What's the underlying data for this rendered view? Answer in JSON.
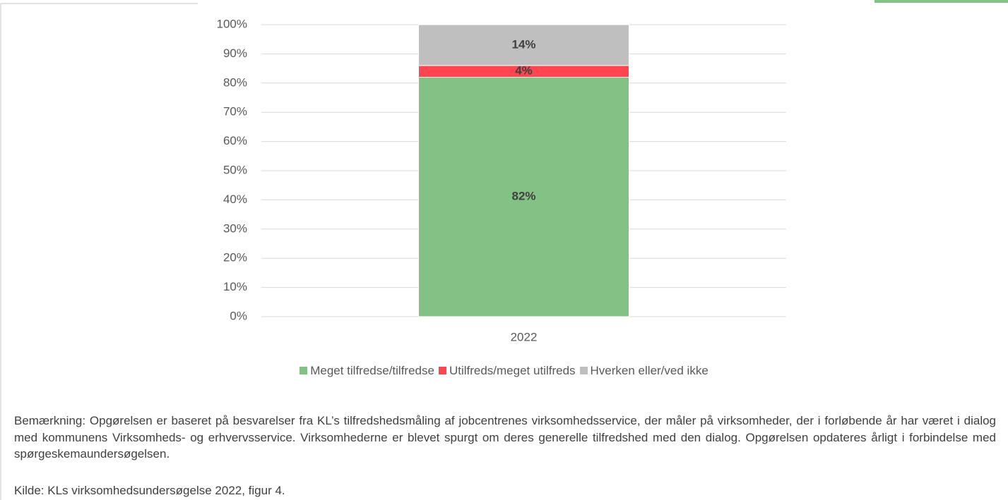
{
  "chart_data": {
    "type": "stacked_bar",
    "categories": [
      "2022"
    ],
    "series": [
      {
        "name": "Meget tilfredse/tilfredse",
        "color": "#84c184",
        "values": [
          82
        ],
        "value_labels": [
          "82%"
        ]
      },
      {
        "name": "Utilfreds/meget utilfreds",
        "color": "#ff4550",
        "values": [
          4
        ],
        "value_labels": [
          "4%"
        ]
      },
      {
        "name": "Hverken eller/ved ikke",
        "color": "#bfbfbf",
        "values": [
          14
        ],
        "value_labels": [
          "14%"
        ]
      }
    ],
    "ylim": [
      0,
      100
    ],
    "yticks": [
      {
        "value": 0,
        "label": "0%"
      },
      {
        "value": 10,
        "label": "10%"
      },
      {
        "value": 20,
        "label": "20%"
      },
      {
        "value": 30,
        "label": "30%"
      },
      {
        "value": 40,
        "label": "40%"
      },
      {
        "value": 50,
        "label": "50%"
      },
      {
        "value": 60,
        "label": "60%"
      },
      {
        "value": 70,
        "label": "70%"
      },
      {
        "value": 80,
        "label": "80%"
      },
      {
        "value": 90,
        "label": "90%"
      },
      {
        "value": 100,
        "label": "100%"
      }
    ],
    "grid": true,
    "legend": "bottom"
  },
  "notes": "Bemærkning: Opgørelsen er baseret på besvarelser fra KL’s tilfredshedsmåling af jobcentrenes virksomhedsservice, der måler på virksomheder, der i forløbende år har været i dialog med kommunens Virksomheds- og erhvervsservice. Virksomhederne er blevet spurgt om deres generelle tilfredshed med den dialog. Opgørelsen opdateres årligt i forbindelse med spørgeskemaundersøgelsen.",
  "source": "Kilde: KLs virksomhedsundersøgelse 2022, figur 4."
}
